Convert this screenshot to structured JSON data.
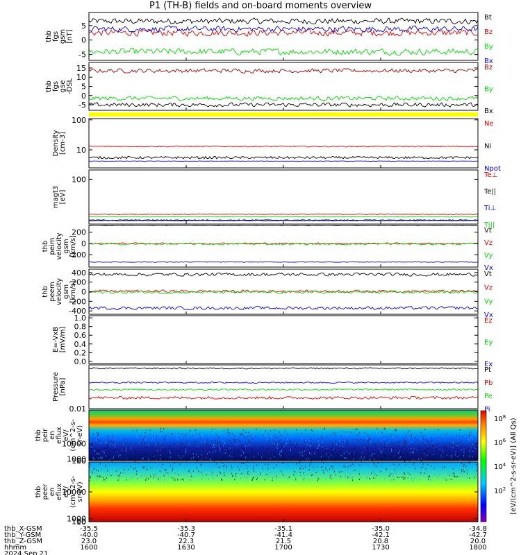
{
  "title": "P1 (TH-B) fields and on-board moments overview",
  "colors": {
    "black": "#000000",
    "red": "#e00000",
    "darkred": "#a00000",
    "green": "#00d800",
    "blue": "#0000e0",
    "yellow": "#ffff00"
  },
  "chart_data": [
    {
      "type": "line",
      "panel": "fgs",
      "ylabel": [
        "thb",
        "fgs",
        "gsm",
        "[nT]"
      ],
      "ylim": [
        -7,
        9.5
      ],
      "ticks": [
        "5",
        "0",
        "-5"
      ],
      "tick_values": [
        5,
        0,
        -5
      ],
      "series": [
        {
          "name": "Bt",
          "color": "#000000",
          "level": 6.5,
          "noise": 0.9
        },
        {
          "name": "Bz",
          "color": "#e00000",
          "level": 2.5,
          "noise": 1.0
        },
        {
          "name": "By",
          "color": "#00d800",
          "level": -4.0,
          "noise": 1.0
        },
        {
          "name": "Bx",
          "color": "#0000e0",
          "level": 3.8,
          "noise": 0.9
        }
      ]
    },
    {
      "type": "line",
      "panel": "fgs_dsl",
      "ylabel": [
        "thb",
        "fgs",
        "gse",
        "-DSL"
      ],
      "ylim": [
        -8,
        18
      ],
      "ticks": [
        "15",
        "10",
        "5",
        "0",
        "-5"
      ],
      "tick_values": [
        15,
        10,
        5,
        0,
        -5
      ],
      "series": [
        {
          "name": "Bz",
          "color": "#a00000",
          "level": 13.5,
          "noise": 1.0
        },
        {
          "name": "By",
          "color": "#00d800",
          "level": -1.5,
          "noise": 1.0
        },
        {
          "name": "Bx",
          "color": "#000000",
          "level": -5.0,
          "noise": 1.0
        }
      ]
    },
    {
      "type": "line",
      "panel": "density",
      "scale": "log",
      "ylabel": [
        "Density",
        "[cm-3]"
      ],
      "ylim": [
        2.5,
        110
      ],
      "ticks": [
        "100",
        "10"
      ],
      "tick_values": [
        100,
        10
      ],
      "series": [
        {
          "name": "Ne",
          "color": "#e00000",
          "level": 13,
          "noise": 0.04
        },
        {
          "name": "Ni",
          "color": "#000000",
          "level": 5.5,
          "noise": 0.08
        },
        {
          "name": "Npot",
          "color": "#0000e0",
          "level": 4.2,
          "noise": 0.01
        }
      ]
    },
    {
      "type": "line",
      "panel": "temperature",
      "scale": "log",
      "ylabel": [
        "magt3",
        "[eV]"
      ],
      "ylim": [
        0.5,
        300
      ],
      "ticks": [
        "100"
      ],
      "tick_values": [
        100
      ],
      "series": [
        {
          "name": "Te⊥",
          "color": "#e00000",
          "level": 1.6,
          "noise": 0.05
        },
        {
          "name": "Te||",
          "color": "#000000",
          "level": 0.8,
          "noise": 0.04
        },
        {
          "name": "Ti⊥",
          "color": "#0000e0",
          "level": 0.75,
          "noise": 0.03
        },
        {
          "name": "Ti||",
          "color": "#00d800",
          "level": 1.2,
          "noise": 0.04
        }
      ]
    },
    {
      "type": "line",
      "panel": "peim_velocity",
      "ylabel": [
        "thb",
        "peim",
        "velocity",
        "gsm",
        "[km/s]"
      ],
      "ylim": [
        -420,
        320
      ],
      "ticks": [
        "200",
        "0",
        "-200"
      ],
      "tick_values": [
        200,
        0,
        -200
      ],
      "series": [
        {
          "name": "Vt",
          "color": "#000000",
          "level": 320,
          "noise": 5
        },
        {
          "name": "Vz",
          "color": "#e00000",
          "level": 0,
          "noise": 12
        },
        {
          "name": "Vy",
          "color": "#00d800",
          "level": -10,
          "noise": 14
        },
        {
          "name": "Vx",
          "color": "#0000e0",
          "level": -330,
          "noise": 6
        }
      ]
    },
    {
      "type": "line",
      "panel": "peem_velocity",
      "ylabel": [
        "thb",
        "peem",
        "velocity",
        "gsm",
        "[km/s]"
      ],
      "ylim": [
        -470,
        470
      ],
      "ticks": [
        "400",
        "200",
        "0",
        "-200",
        "-400"
      ],
      "tick_values": [
        400,
        200,
        0,
        -200,
        -400
      ],
      "series": [
        {
          "name": "Vt",
          "color": "#000000",
          "level": 360,
          "noise": 30
        },
        {
          "name": "Vz",
          "color": "#e00000",
          "level": 10,
          "noise": 25
        },
        {
          "name": "Vy",
          "color": "#00d800",
          "level": -10,
          "noise": 25
        },
        {
          "name": "Vx",
          "color": "#0000e0",
          "level": -340,
          "noise": 30
        }
      ]
    },
    {
      "type": "line",
      "panel": "efield",
      "ylabel": [
        "E=-VxB",
        "[mV/m]"
      ],
      "ylim": [
        -0.05,
        1.05
      ],
      "ticks": [
        "1.0",
        "0.8",
        "0.6",
        "0.4",
        "0.2",
        "0.0"
      ],
      "tick_values": [
        1.0,
        0.8,
        0.6,
        0.4,
        0.2,
        0.0
      ],
      "series": [
        {
          "name": "Ez",
          "color": "#e00000",
          "level": null,
          "noise": 0
        },
        {
          "name": "Ey",
          "color": "#00d800",
          "level": null,
          "noise": 0
        },
        {
          "name": "Ex",
          "color": "#0000e0",
          "level": null,
          "noise": 0
        }
      ]
    },
    {
      "type": "line",
      "panel": "pressure",
      "scale": "log",
      "ylabel": [
        "Pressure",
        "[nPa]"
      ],
      "ylim": [
        0.01,
        0.4
      ],
      "ticks": [
        "0.01"
      ],
      "tick_values": [
        0.01
      ],
      "series": [
        {
          "name": "Pt",
          "color": "#000000",
          "level": 0.3,
          "noise": 0.05
        },
        {
          "name": "Pb",
          "color": "#e00000",
          "level": 0.025,
          "noise": 0.1
        },
        {
          "name": "Pe",
          "color": "#00d800",
          "level": 0.05,
          "noise": 0.06
        },
        {
          "name": "Pi",
          "color": "#0000e0",
          "level": 0.09,
          "noise": 0.05
        }
      ]
    },
    {
      "type": "heatmap",
      "panel": "peir",
      "ylabel": [
        "thb",
        "peir",
        "en",
        "eflux",
        "eV/",
        "(cm^2-s-",
        "sr-eV)"
      ],
      "ylim": [
        5,
        30000
      ],
      "ticks": [
        "10000",
        "1000",
        "100",
        "10"
      ],
      "tick_values": [
        10000,
        1000,
        100,
        10
      ],
      "colorbar": {
        "label": "[eV/(cm^2-s-sr-eV)] (All Qs)",
        "ticks": [
          "10^8",
          "10^6",
          "10^4",
          "10^2"
        ]
      }
    },
    {
      "type": "heatmap",
      "panel": "peer",
      "ylabel": [
        "thb",
        "peer",
        "en",
        "eflux",
        "eV/",
        "(cm^2-s-",
        "sr-eV)"
      ],
      "ylim": [
        5,
        20000
      ],
      "ticks": [
        "10000",
        "1000",
        "100",
        "10"
      ],
      "tick_values": [
        10000,
        1000,
        100,
        10
      ],
      "colorbar": {
        "ticks": [
          "10^8",
          "10^6",
          "10^4",
          "10^2"
        ]
      }
    }
  ],
  "xaxis": {
    "rows": [
      {
        "label": "thb_X-GSM",
        "values": [
          "-35.5",
          "-35.3",
          "-35.1",
          "-35.0",
          "-34.8"
        ]
      },
      {
        "label": "thb_Y-GSM",
        "values": [
          "-40.0",
          "-40.7",
          "-41.4",
          "-42.1",
          "-42.7"
        ]
      },
      {
        "label": "thb_Z-GSM",
        "values": [
          "23.0",
          "22.3",
          "21.5",
          "20.8",
          "20.0"
        ]
      },
      {
        "label": "hhmm",
        "values": [
          "1600",
          "1630",
          "1700",
          "1730",
          "1800"
        ]
      }
    ],
    "date": "2024 Sep 21"
  }
}
